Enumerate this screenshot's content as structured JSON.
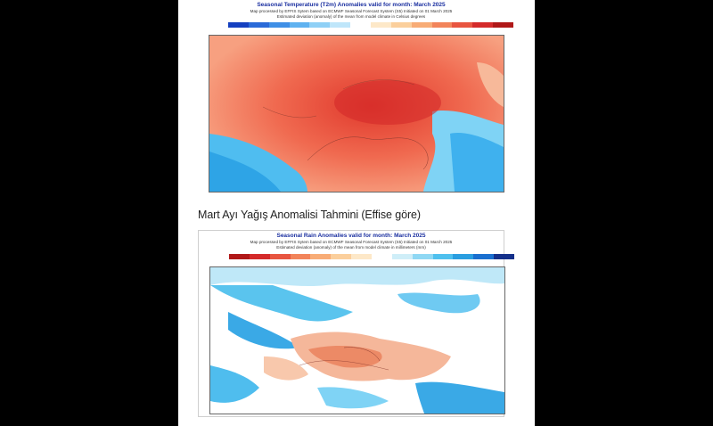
{
  "figure1": {
    "title": "Seasonal Temperature (T2m) Anomalies valid for month: March 2025",
    "subtitle_1": "Map processed by EFFIS Sytem based on ECMWF Seasonal Forecast System (S5) Initiated on 01 March 2025",
    "subtitle_2": "Estimated deviation (anomaly) of the mean from model climate in Celsius degrees",
    "colors": [
      "#1540c0",
      "#2a6ad8",
      "#3f8fe6",
      "#5fb2f0",
      "#8fd0f6",
      "#bfe6fa",
      "#ffffff",
      "#fde8c8",
      "#fbcf9c",
      "#f8ac76",
      "#f2845a",
      "#e85540",
      "#d42a2a",
      "#b01818"
    ],
    "map_color": "#f06a50"
  },
  "heading": "Mart Ayı Yağış Anomalisi Tahmini (Effise göre)",
  "figure2": {
    "title": "Seasonal Rain Anomalies valid for month: March 2025",
    "subtitle_1": "Map processed by EFFIS Sytem based on ECMWF Seasonal Forecast System (S5) Initiated on 01 March 2025",
    "subtitle_2": "Estimated deviation (anomaly) of the mean from model climate in millimeters (mm)",
    "colors": [
      "#b01818",
      "#d42a2a",
      "#e85540",
      "#f2845a",
      "#f8ac76",
      "#fbcf9c",
      "#fde8c8",
      "#ffffff",
      "#cfeef8",
      "#8fd8f4",
      "#4fc0ee",
      "#2a9ee0",
      "#1a6fcf",
      "#14308a"
    ],
    "map_color": "#f5b79a"
  }
}
